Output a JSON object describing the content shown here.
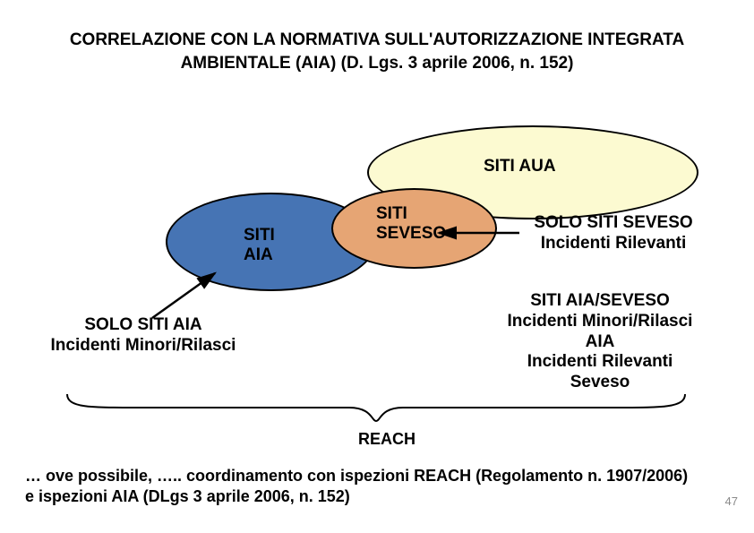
{
  "title": "CORRELAZIONE CON LA NORMATIVA SULL'AUTORIZZAZIONE INTEGRATA AMBIENTALE (AIA) (D. Lgs. 3 aprile 2006, n. 152)",
  "ellipses": {
    "aua": {
      "label": "SITI AUA",
      "fill": "#fcfad1"
    },
    "aia": {
      "label": "SITI\nAIA",
      "fill": "#4674b4"
    },
    "seveso": {
      "label": "SITI\nSEVESO",
      "fill": "#e6a574"
    }
  },
  "side_labels": {
    "right": "SOLO SITI SEVESO\nIncidenti Rilevanti",
    "left": "SOLO SITI AIA\nIncidenti Minori/Rilasci",
    "right_below": "SITI AIA/SEVESO\nIncidenti Minori/Rilasci\nAIA\nIncidenti Rilevanti\nSeveso"
  },
  "reach_label": "REACH",
  "footer": "… ove possibile, ….. coordinamento con ispezioni REACH (Regolamento n. 1907/2006) e ispezioni AIA (DLgs 3 aprile 2006, n. 152)",
  "page_number": "47",
  "style": {
    "title_fontsize": 19,
    "label_fontsize": 19,
    "footer_fontsize": 18,
    "page_num_fontsize": 13,
    "page_num_color": "#8a8a8a",
    "stroke": "#000000",
    "background": "#ffffff"
  }
}
